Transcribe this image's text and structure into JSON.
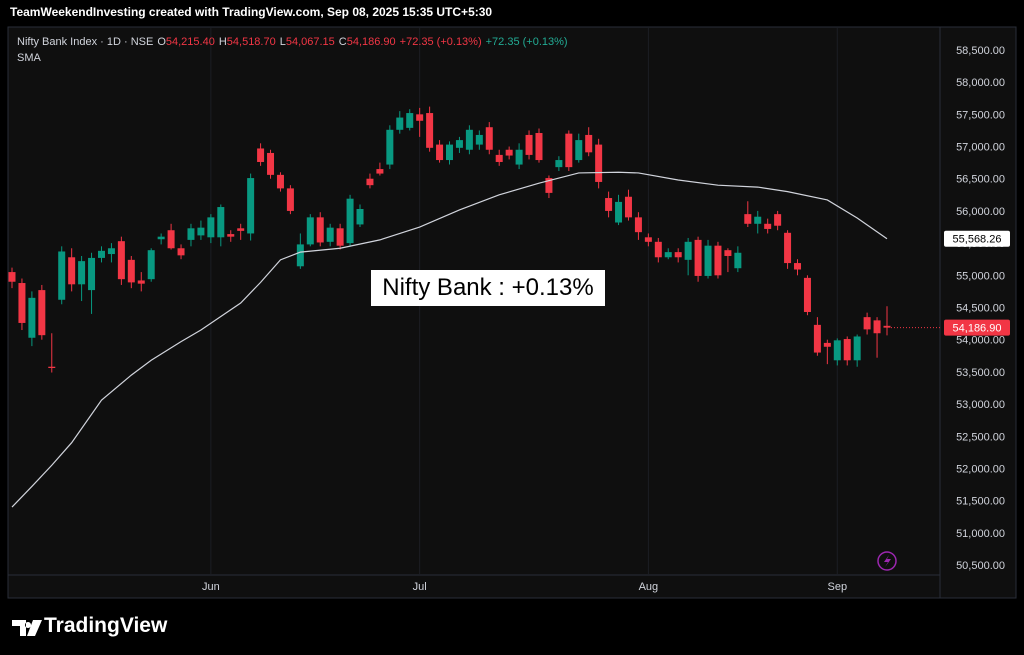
{
  "header": "TeamWeekendInvesting created with TradingView.com, Sep 08, 2025 15:35 UTC+5:30",
  "brand": "TradingView",
  "chart_data": {
    "type": "candlestick",
    "legend": {
      "title": "Nifty Bank Index · 1D · NSE",
      "fields": [
        {
          "key": "O",
          "value": "54,215.40"
        },
        {
          "key": "H",
          "value": "54,518.70"
        },
        {
          "key": "L",
          "value": "54,067.15"
        },
        {
          "key": "C",
          "value": "54,186.90"
        }
      ],
      "change": "+72.35 (+0.13%)",
      "change_2": "+72.35 (+0.13%)",
      "indicator": "SMA"
    },
    "annotation": "Nifty Bank : +0.13%",
    "categories": [
      null,
      null,
      null,
      null,
      null,
      null,
      null,
      null,
      null,
      null,
      null,
      null,
      null,
      null,
      null,
      null,
      null,
      null,
      null,
      null,
      "Jun",
      null,
      null,
      null,
      null,
      null,
      null,
      null,
      null,
      null,
      null,
      null,
      null,
      null,
      null,
      null,
      null,
      null,
      null,
      null,
      null,
      "Jul",
      null,
      null,
      null,
      null,
      null,
      null,
      null,
      null,
      null,
      null,
      null,
      null,
      null,
      null,
      null,
      null,
      null,
      null,
      null,
      null,
      null,
      null,
      "Aug",
      null,
      null,
      null,
      null,
      null,
      null,
      null,
      null,
      null,
      null,
      null,
      null,
      null,
      null,
      null,
      null,
      null,
      null,
      "Sep",
      null,
      null,
      null,
      null,
      null
    ],
    "series": [
      {
        "up_color": "#089981",
        "down_color": "#f23645",
        "close_label": "54,186.90",
        "open": [
          55050,
          54880,
          54030,
          54770,
          53580,
          54620,
          55280,
          54860,
          54770,
          55270,
          55330,
          55530,
          55240,
          54920,
          54940,
          55560,
          55700,
          55420,
          55550,
          55620,
          55590,
          55590,
          55640,
          55730,
          55650,
          56970,
          56900,
          56560,
          56350,
          55140,
          55480,
          55900,
          55520,
          55730,
          55500,
          55790,
          56500,
          56650,
          56720,
          57260,
          57290,
          57500,
          57520,
          57030,
          56790,
          56980,
          56950,
          57030,
          57300,
          56870,
          56950,
          56720,
          57180,
          57210,
          56510,
          56680,
          57200,
          56790,
          57180,
          57030,
          56200,
          55820,
          56220,
          55900,
          55590,
          55520,
          55280,
          55360,
          55240,
          55550,
          54990,
          55460,
          55390,
          55110,
          55950,
          55800,
          55800,
          55950,
          55660,
          55190,
          54960,
          54230,
          53950,
          53680,
          54010,
          53680,
          54350,
          54300,
          54215.4
        ],
        "high": [
          55120,
          54950,
          54750,
          54850,
          54100,
          55450,
          55420,
          55300,
          55350,
          55450,
          55500,
          55600,
          55300,
          55050,
          55420,
          55650,
          55800,
          55480,
          55800,
          55850,
          55950,
          56100,
          55700,
          55800,
          56580,
          57050,
          56950,
          56600,
          56400,
          55650,
          55950,
          55980,
          55800,
          55800,
          56250,
          56100,
          56580,
          56750,
          57330,
          57550,
          57580,
          57600,
          57620,
          57100,
          57080,
          57150,
          57330,
          57250,
          57380,
          56950,
          57000,
          57050,
          57250,
          57280,
          56550,
          56850,
          57250,
          57200,
          57300,
          57120,
          56300,
          56250,
          56330,
          55980,
          55650,
          55580,
          55420,
          55420,
          55580,
          55600,
          55550,
          55520,
          55420,
          55450,
          56150,
          56000,
          55880,
          56000,
          55700,
          55250,
          55000,
          54350,
          54000,
          54020,
          54050,
          54080,
          54420,
          54350,
          54518.7
        ],
        "low": [
          54800,
          54150,
          53900,
          54000,
          53490,
          54550,
          54750,
          54600,
          54400,
          55200,
          55200,
          54850,
          54800,
          54750,
          54900,
          55480,
          55400,
          55250,
          55450,
          55550,
          55500,
          55450,
          55520,
          55550,
          55540,
          56700,
          56500,
          56300,
          55950,
          55100,
          55450,
          55450,
          55450,
          55400,
          55450,
          55750,
          56350,
          56550,
          56650,
          57200,
          57250,
          57150,
          56920,
          56750,
          56720,
          56900,
          56880,
          56950,
          56880,
          56700,
          56800,
          56650,
          56800,
          56750,
          56200,
          56620,
          56620,
          56750,
          56850,
          56350,
          55900,
          55780,
          55850,
          55550,
          55450,
          55200,
          55250,
          55200,
          55000,
          54900,
          54950,
          54950,
          55050,
          55050,
          55750,
          55650,
          55650,
          55700,
          55100,
          55000,
          54380,
          53750,
          53620,
          53600,
          53600,
          53580,
          54080,
          53720,
          54067.15
        ],
        "close": [
          54900,
          54260,
          54650,
          54070,
          53560,
          55370,
          54860,
          55220,
          55270,
          55380,
          55420,
          54940,
          54890,
          54870,
          55390,
          55600,
          55420,
          55310,
          55730,
          55740,
          55900,
          56060,
          55600,
          55690,
          56510,
          56760,
          56560,
          56350,
          56000,
          55480,
          55900,
          55510,
          55740,
          55460,
          56190,
          56030,
          56400,
          56580,
          57260,
          57450,
          57520,
          57400,
          56980,
          56790,
          57030,
          57100,
          57260,
          57180,
          56950,
          56760,
          56860,
          56950,
          56870,
          56790,
          56280,
          56790,
          56680,
          57100,
          56910,
          56450,
          56000,
          56140,
          55900,
          55670,
          55520,
          55280,
          55360,
          55280,
          55520,
          54990,
          55460,
          55000,
          55300,
          55350,
          55800,
          55910,
          55720,
          55770,
          55190,
          55090,
          54430,
          53800,
          53890,
          53990,
          53680,
          54050,
          54160,
          54100,
          54186.9
        ]
      }
    ],
    "sma": {
      "color": "#d1d4dc",
      "last_label": "55,568.26",
      "x": [
        0,
        2,
        4,
        6,
        9,
        12,
        14,
        17,
        19,
        21,
        23,
        25,
        27,
        29,
        33,
        37,
        41,
        45,
        49,
        53,
        57,
        61,
        63,
        67,
        71,
        75,
        78,
        82,
        85,
        88
      ],
      "values": [
        51400,
        51720,
        52050,
        52400,
        53060,
        53450,
        53680,
        53970,
        54150,
        54360,
        54570,
        54890,
        55240,
        55360,
        55420,
        55550,
        55750,
        56015,
        56250,
        56430,
        56590,
        56600,
        56590,
        56480,
        56400,
        56370,
        56300,
        56170,
        55890,
        55568.26
      ]
    },
    "ylim": [
      50345,
      58810
    ],
    "yticks": [
      {
        "value": 50500,
        "label": "50,500.00"
      },
      {
        "value": 51000,
        "label": "51,000.00"
      },
      {
        "value": 51500,
        "label": "51,500.00"
      },
      {
        "value": 52000,
        "label": "52,000.00"
      },
      {
        "value": 52500,
        "label": "52,500.00"
      },
      {
        "value": 53000,
        "label": "53,000.00"
      },
      {
        "value": 53500,
        "label": "53,500.00"
      },
      {
        "value": 54000,
        "label": "54,000.00"
      },
      {
        "value": 54500,
        "label": "54,500.00"
      },
      {
        "value": 55000,
        "label": "55,000.00"
      },
      {
        "value": 55500,
        "label": "55,500.00"
      },
      {
        "value": 56000,
        "label": "56,000.00"
      },
      {
        "value": 56500,
        "label": "56,500.00"
      },
      {
        "value": 57000,
        "label": "57,000.00"
      },
      {
        "value": 57500,
        "label": "57,500.00"
      },
      {
        "value": 58000,
        "label": "58,000.00"
      },
      {
        "value": 58500,
        "label": "58,500.00"
      }
    ],
    "grid": true
  }
}
